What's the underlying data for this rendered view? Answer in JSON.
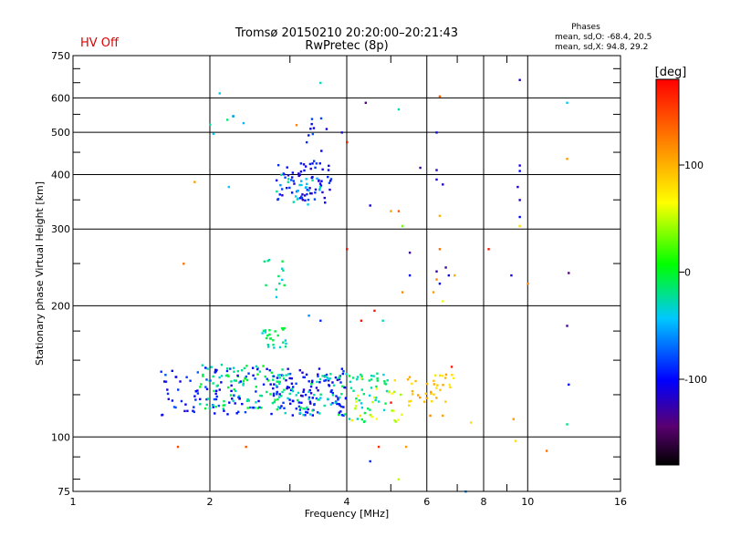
{
  "header": {
    "title_line1": "Tromsø 20150210 20:20:00–20:21:43",
    "title_line2": "RwPretec (8p)",
    "status": "HV Off",
    "status_color": "#e00000",
    "stats_title": "Phases",
    "stats_line1": "mean, sd,O: -68.4, 20.5",
    "stats_line2": "mean, sd,X:  94.8, 29.2"
  },
  "chart_data": {
    "type": "scatter",
    "xlabel": "Frequency [MHz]",
    "ylabel": "Stationary phase Virtual Height [km]",
    "x_scale": "log",
    "y_scale": "log",
    "xlim": [
      1,
      16
    ],
    "ylim": [
      75,
      750
    ],
    "x_ticks": [
      1,
      2,
      4,
      6,
      8,
      10,
      16
    ],
    "x_minor_ticks": [
      3,
      5,
      7,
      9
    ],
    "y_ticks": [
      75,
      100,
      200,
      300,
      400,
      500,
      600,
      750
    ],
    "y_minor_ticks": [
      80,
      90,
      125,
      150,
      175,
      250,
      350,
      450,
      550,
      650,
      700
    ],
    "grid": true,
    "colorbar": {
      "label": "[deg]",
      "range": [
        -180,
        180
      ],
      "ticks": [
        100,
        0,
        -100
      ],
      "colormap": "rainbow"
    },
    "clusters": [
      {
        "xmin": 1.55,
        "xmax": 2.1,
        "ymin": 112,
        "ymax": 145,
        "phase": -95,
        "count": 45
      },
      {
        "xmin": 1.9,
        "xmax": 2.9,
        "ymin": 115,
        "ymax": 148,
        "phase": -15,
        "count": 90
      },
      {
        "xmin": 2.0,
        "xmax": 2.8,
        "ymin": 112,
        "ymax": 145,
        "phase": -95,
        "count": 50
      },
      {
        "xmin": 2.8,
        "xmax": 4.0,
        "ymin": 112,
        "ymax": 145,
        "phase": -100,
        "count": 110
      },
      {
        "xmin": 2.8,
        "xmax": 4.0,
        "ymin": 112,
        "ymax": 140,
        "phase": -25,
        "count": 60
      },
      {
        "xmin": 2.6,
        "xmax": 2.95,
        "ymin": 160,
        "ymax": 178,
        "phase": -20,
        "count": 25
      },
      {
        "xmin": 4.0,
        "xmax": 5.0,
        "ymin": 108,
        "ymax": 140,
        "phase": -20,
        "count": 45
      },
      {
        "xmin": 4.1,
        "xmax": 5.3,
        "ymin": 108,
        "ymax": 138,
        "phase": 60,
        "count": 25
      },
      {
        "xmin": 5.2,
        "xmax": 6.3,
        "ymin": 118,
        "ymax": 140,
        "phase": 95,
        "count": 18
      },
      {
        "xmin": 6.2,
        "xmax": 6.9,
        "ymin": 120,
        "ymax": 140,
        "phase": 85,
        "count": 18
      },
      {
        "xmin": 2.8,
        "xmax": 3.7,
        "ymin": 345,
        "ymax": 430,
        "phase": -100,
        "count": 70
      },
      {
        "xmin": 2.8,
        "xmax": 3.7,
        "ymin": 340,
        "ymax": 400,
        "phase": -40,
        "count": 25
      },
      {
        "xmin": 3.2,
        "xmax": 3.8,
        "ymin": 450,
        "ymax": 540,
        "phase": -95,
        "count": 10
      },
      {
        "xmin": 2.0,
        "xmax": 2.4,
        "ymin": 480,
        "ymax": 560,
        "phase": -35,
        "count": 5
      },
      {
        "xmin": 2.5,
        "xmax": 3.0,
        "ymin": 200,
        "ymax": 255,
        "phase": -25,
        "count": 12
      }
    ],
    "points": [
      [
        9.6,
        660,
        -120
      ],
      [
        6.4,
        605,
        140
      ],
      [
        4.4,
        585,
        -140
      ],
      [
        12.2,
        585,
        -40
      ],
      [
        5.2,
        565,
        -30
      ],
      [
        6.3,
        500,
        -110
      ],
      [
        3.9,
        500,
        -110
      ],
      [
        4.0,
        475,
        170
      ],
      [
        9.6,
        420,
        -110
      ],
      [
        9.6,
        408,
        -100
      ],
      [
        12.2,
        435,
        110
      ],
      [
        5.8,
        415,
        -130
      ],
      [
        6.3,
        410,
        -120
      ],
      [
        6.3,
        390,
        -110
      ],
      [
        6.5,
        380,
        -115
      ],
      [
        9.5,
        375,
        -115
      ],
      [
        9.6,
        350,
        -120
      ],
      [
        4.5,
        340,
        -110
      ],
      [
        5.0,
        330,
        110
      ],
      [
        5.2,
        330,
        140
      ],
      [
        6.4,
        322,
        100
      ],
      [
        9.6,
        320,
        -100
      ],
      [
        9.6,
        305,
        80
      ],
      [
        5.3,
        305,
        30
      ],
      [
        4.0,
        270,
        175
      ],
      [
        6.4,
        270,
        130
      ],
      [
        5.5,
        265,
        -130
      ],
      [
        8.2,
        270,
        170
      ],
      [
        5.5,
        235,
        -100
      ],
      [
        6.3,
        240,
        -125
      ],
      [
        6.6,
        245,
        -130
      ],
      [
        6.7,
        235,
        -110
      ],
      [
        6.9,
        235,
        100
      ],
      [
        6.3,
        230,
        120
      ],
      [
        9.2,
        235,
        -115
      ],
      [
        12.3,
        238,
        -140
      ],
      [
        6.4,
        225,
        -100
      ],
      [
        6.2,
        215,
        110
      ],
      [
        10.0,
        225,
        120
      ],
      [
        5.3,
        215,
        120
      ],
      [
        6.5,
        205,
        60
      ],
      [
        4.6,
        195,
        170
      ],
      [
        4.8,
        185,
        -30
      ],
      [
        4.3,
        185,
        170
      ],
      [
        3.5,
        185,
        -90
      ],
      [
        3.3,
        190,
        -60
      ],
      [
        12.2,
        180,
        -130
      ],
      [
        1.75,
        250,
        130
      ],
      [
        1.85,
        385,
        110
      ],
      [
        2.1,
        615,
        -40
      ],
      [
        2.25,
        545,
        -60
      ],
      [
        3.5,
        650,
        -30
      ],
      [
        3.1,
        520,
        120
      ],
      [
        2.2,
        375,
        -40
      ],
      [
        2.7,
        255,
        -30
      ],
      [
        1.7,
        95,
        150
      ],
      [
        2.4,
        95,
        140
      ],
      [
        4.7,
        95,
        160
      ],
      [
        4.5,
        88,
        -90
      ],
      [
        5.2,
        80,
        50
      ],
      [
        5.4,
        95,
        110
      ],
      [
        7.3,
        75,
        -60
      ],
      [
        9.3,
        110,
        110
      ],
      [
        12.2,
        107,
        -20
      ],
      [
        11.0,
        93,
        130
      ],
      [
        7.5,
        108,
        80
      ],
      [
        6.5,
        112,
        110
      ],
      [
        6.1,
        112,
        120
      ],
      [
        9.4,
        98,
        80
      ],
      [
        5.0,
        120,
        170
      ],
      [
        6.8,
        145,
        170
      ],
      [
        12.3,
        132,
        -100
      ]
    ]
  }
}
